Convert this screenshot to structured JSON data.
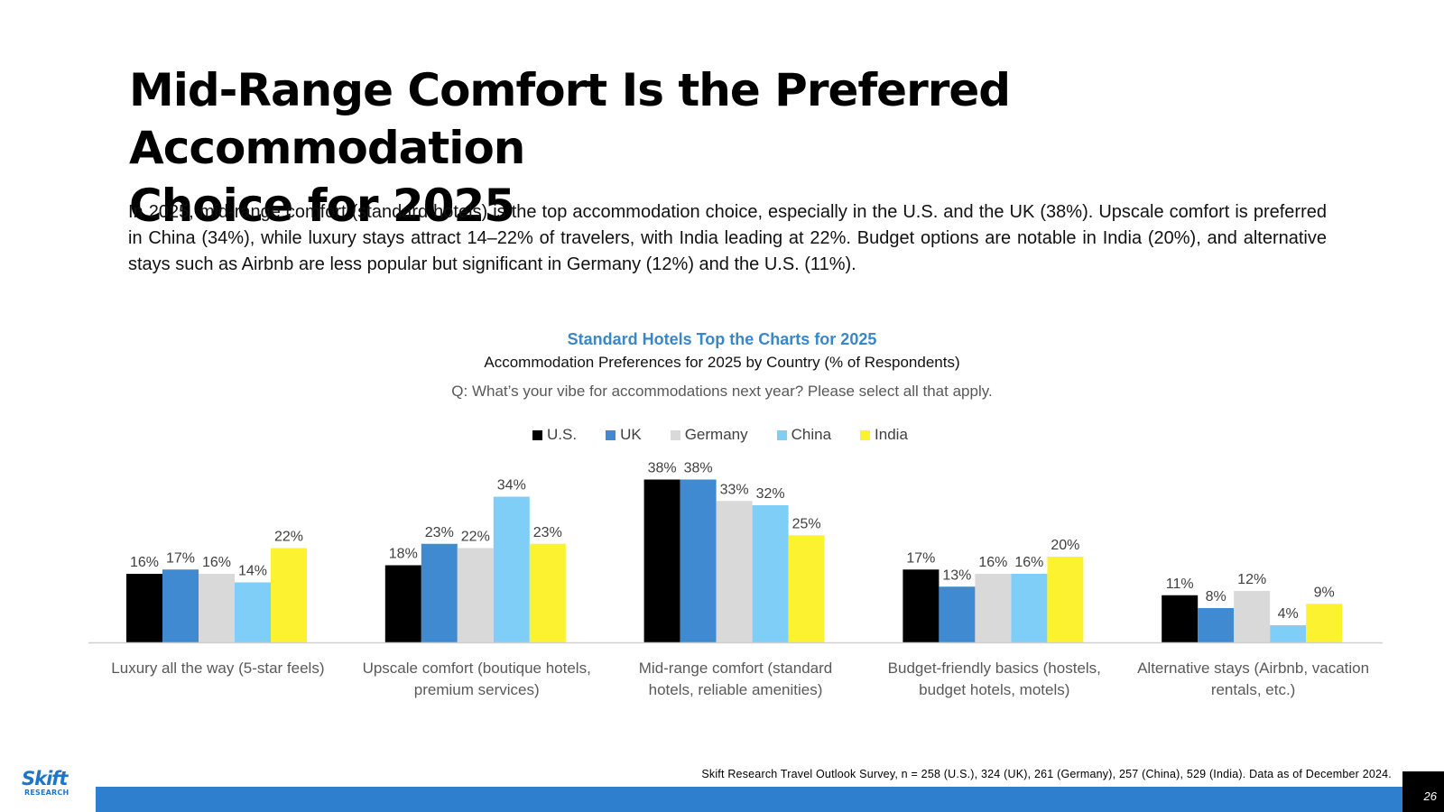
{
  "slide": {
    "title_line1": "Mid-Range Comfort Is the Preferred Accommodation",
    "title_line2": "Choice for 2025",
    "body": "In 2025, mid-range comfort (standard hotels) is the top accommodation choice, especially in the U.S. and the UK (38%). Upscale comfort is preferred in China (34%), while luxury stays attract 14–22% of travelers, with India leading at 22%. Budget options are notable in India (20%), and alternative stays such as Airbnb are less popular but significant in Germany (12%) and the U.S. (11%).",
    "footnote": "Skift Research Travel Outlook Survey, n = 258 (U.S.), 324 (UK), 261 (Germany), 257 (China), 529 (India). Data as of December 2024.",
    "page_number": "26",
    "logo_text": "Skift",
    "logo_subtext": "RESEARCH",
    "footer_color": "#2f7fcf"
  },
  "chart_data": {
    "type": "bar",
    "title": "Standard Hotels Top the Charts for 2025",
    "subtitle": "Accommodation Preferences for 2025 by Country (% of Respondents)",
    "question": "Q: What’s your vibe for accommodations next year? Please select all that apply.",
    "categories": [
      [
        "Luxury all the way (5-star feels)"
      ],
      [
        "Upscale comfort (boutique hotels,",
        "premium services)"
      ],
      [
        "Mid-range comfort (standard",
        "hotels, reliable amenities)"
      ],
      [
        "Budget-friendly basics (hostels,",
        "budget hotels, motels)"
      ],
      [
        "Alternative stays (Airbnb, vacation",
        "rentals, etc.)"
      ]
    ],
    "series": [
      {
        "name": "U.S.",
        "color": "#000000",
        "values": [
          16,
          18,
          38,
          17,
          11
        ]
      },
      {
        "name": "UK",
        "color": "#3f8ad0",
        "values": [
          17,
          23,
          38,
          13,
          8
        ]
      },
      {
        "name": "Germany",
        "color": "#d9d9d9",
        "values": [
          16,
          22,
          33,
          16,
          12
        ]
      },
      {
        "name": "China",
        "color": "#7fcef8",
        "values": [
          14,
          34,
          32,
          16,
          4
        ]
      },
      {
        "name": "India",
        "color": "#fdf22f",
        "values": [
          22,
          23,
          25,
          20,
          9
        ]
      }
    ],
    "value_suffix": "%",
    "ylim": [
      0,
      40
    ],
    "grid": false,
    "legend_position": "top"
  }
}
